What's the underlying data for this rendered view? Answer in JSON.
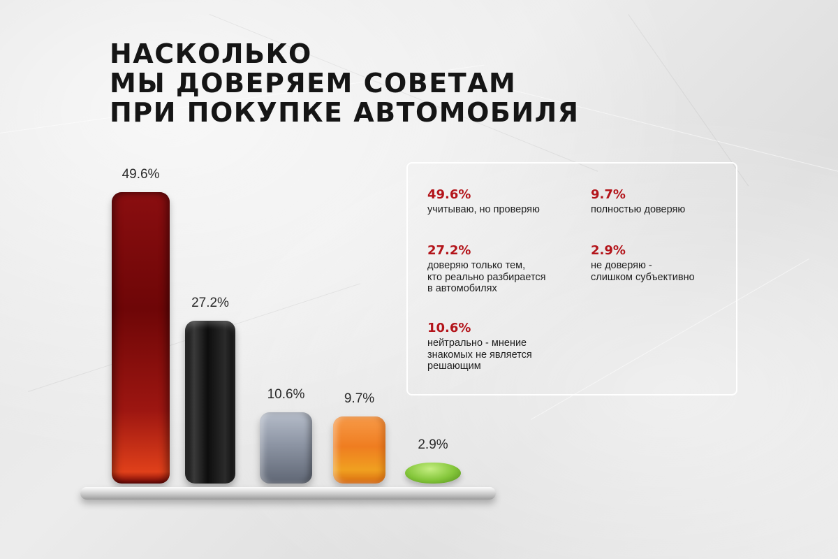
{
  "title": [
    "НАСКОЛЬКО",
    "МЫ ДОВЕРЯЕМ СОВЕТАМ",
    "ПРИ ПОКУПКЕ АВТОМОБИЛЯ"
  ],
  "colors": {
    "accent_red": "#b3141a",
    "bar_red": "#8a0e10",
    "bar_black": "#151515",
    "bar_gray": "#8d95a4",
    "bar_orange": "#ef7d20",
    "bar_green": "#84c63a"
  },
  "chart_data": {
    "type": "bar",
    "title": "НАСКОЛЬКО МЫ ДОВЕРЯЕМ СОВЕТАМ ПРИ ПОКУПКЕ АВТОМОБИЛЯ",
    "unit": "%",
    "categories": [
      "учитываю, но проверяю",
      "доверяю только тем, кто реально разбирается в автомобилях",
      "нейтрально - мнение знакомых не является решающим",
      "полностью доверяю",
      "не доверяю - слишком субъективно"
    ],
    "values": [
      49.6,
      27.2,
      10.6,
      9.7,
      2.9
    ],
    "data_labels": [
      "49.6%",
      "27.2%",
      "10.6%",
      "9.7%",
      "2.9%"
    ],
    "bar_colors": [
      "red",
      "black",
      "gray",
      "orange",
      "green"
    ],
    "ylim": [
      0,
      49.6
    ],
    "grid": false,
    "legend_placement": "right"
  },
  "legend": [
    {
      "value": "49.6%",
      "desc": "учитываю, но проверяю"
    },
    {
      "value": "9.7%",
      "desc": "полностью доверяю"
    },
    {
      "value": "27.2%",
      "desc": "доверяю только тем,\nкто реально разбирается\nв автомобилях"
    },
    {
      "value": "2.9%",
      "desc": "не доверяю -\nслишком субъективно"
    },
    {
      "value": "10.6%",
      "desc": "нейтрально - мнение\nзнакомых не является\nрешающим"
    }
  ]
}
